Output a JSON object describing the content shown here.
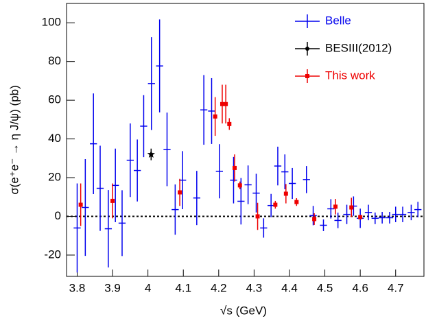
{
  "chart_data": {
    "type": "errorbar",
    "x_label": "√s (GeV)",
    "y_label": "σ(e⁺e⁻ → η J/ψ) (pb)",
    "xlim": [
      3.77,
      4.78
    ],
    "ylim": [
      -31,
      110
    ],
    "xticks": [
      3.8,
      3.9,
      4,
      4.1,
      4.2,
      4.3,
      4.4,
      4.5,
      4.6,
      4.7
    ],
    "yticks": [
      -20,
      0,
      20,
      40,
      60,
      80,
      100
    ],
    "hline": 0,
    "legend": "top-right",
    "series": [
      {
        "name": "Belle",
        "color": "#0000ee",
        "marker": "none",
        "xerr": 0.01,
        "x": [
          3.8,
          3.823,
          3.846,
          3.865,
          3.888,
          3.908,
          3.927,
          3.95,
          3.97,
          3.988,
          4.01,
          4.033,
          4.054,
          4.077,
          4.098,
          4.138,
          4.158,
          4.18,
          4.202,
          4.242,
          4.263,
          4.283,
          4.306,
          4.327,
          4.348,
          4.367,
          4.387,
          4.408,
          4.448,
          4.467,
          4.496,
          4.517,
          4.537,
          4.562,
          4.581,
          4.6,
          4.623,
          4.642,
          4.662,
          4.683,
          4.7,
          4.72,
          4.744,
          4.763
        ],
        "values": [
          -6,
          4.6,
          37.5,
          14.5,
          -6.4,
          16,
          -3.5,
          29,
          23.7,
          46.6,
          68.6,
          77.7,
          34.6,
          3.5,
          18.7,
          9.5,
          55,
          54.4,
          23.3,
          18.7,
          7.8,
          16.3,
          12,
          -6,
          5.6,
          26,
          23,
          17,
          19,
          0.4,
          -4.6,
          3.9,
          -2.1,
          1,
          5.3,
          -1,
          2,
          -1,
          -0.7,
          -0.7,
          1,
          1,
          2,
          3.5
        ],
        "errors": [
          23,
          25,
          26,
          22,
          20,
          19,
          17,
          19,
          16,
          16,
          24,
          24,
          19,
          13,
          15,
          14,
          18,
          17,
          14,
          12,
          12,
          10,
          10,
          5,
          6,
          10,
          9,
          8,
          7,
          5,
          3,
          5,
          4,
          5,
          5,
          5,
          4,
          3,
          3,
          3,
          4,
          4,
          4,
          4
        ]
      },
      {
        "name": "BESIII(2012)",
        "color": "#000000",
        "marker": "star",
        "xerr": 0,
        "x": [
          4.009
        ],
        "values": [
          32
        ],
        "errors": [
          3
        ]
      },
      {
        "name": "This work",
        "color": "#ee0000",
        "marker": "square",
        "xerr": 0,
        "x": [
          3.81,
          3.9,
          4.09,
          4.19,
          4.21,
          4.22,
          4.23,
          4.245,
          4.26,
          4.31,
          4.36,
          4.39,
          4.42,
          4.47,
          4.53,
          4.575,
          4.6
        ],
        "values": [
          6,
          8,
          12.4,
          51.6,
          58,
          58,
          47.7,
          25,
          16,
          0,
          6,
          11.7,
          7.4,
          -1.4,
          5,
          4.6,
          -0.4
        ],
        "errors": [
          11,
          9,
          7,
          10,
          10,
          10,
          3,
          7,
          2,
          7,
          2,
          5,
          2,
          3,
          4,
          5,
          1
        ]
      }
    ]
  }
}
